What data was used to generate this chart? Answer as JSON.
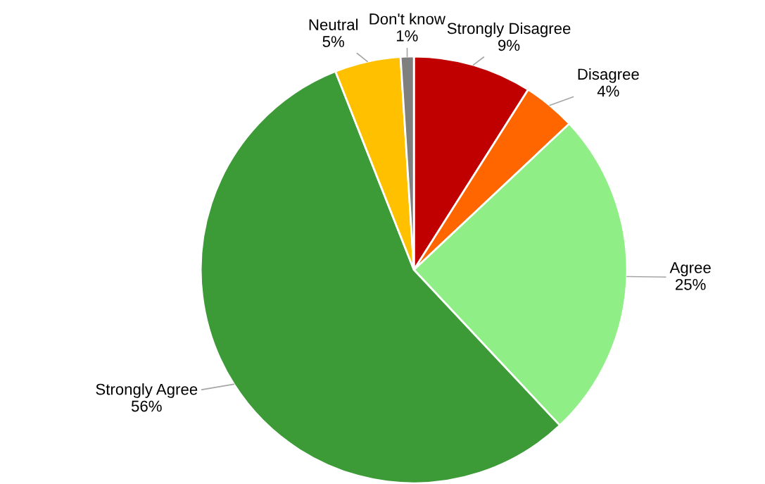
{
  "chart_data": {
    "type": "pie",
    "categories": [
      "Strongly Disagree",
      "Disagree",
      "Agree",
      "Strongly Agree",
      "Neutral",
      "Don't know"
    ],
    "values": [
      9,
      4,
      25,
      56,
      5,
      1
    ],
    "colors": [
      "#c00000",
      "#ff6600",
      "#90ee86",
      "#3c9a37",
      "#ffc000",
      "#7f7f7f"
    ],
    "value_labels": [
      "9%",
      "4%",
      "25%",
      "56%",
      "5%",
      "1%"
    ]
  }
}
